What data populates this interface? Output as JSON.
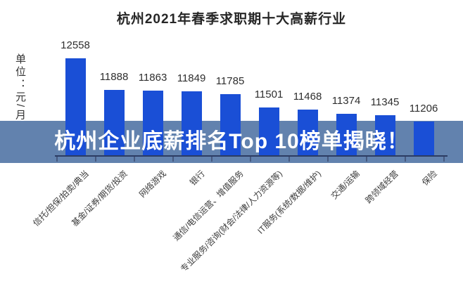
{
  "chart_title": "杭州2021年春季求职期十大高薪行业",
  "y_axis_unit": "单位：元/月",
  "banner": {
    "headline": "杭州企业底薪排名Top 10榜单揭晓！"
  },
  "chart_data": {
    "type": "bar",
    "title": "杭州2021年春季求职期十大高薪行业",
    "ylabel": "单位：元/月",
    "categories": [
      "信托/担保/拍卖/典当",
      "基金/证券/期货/投资",
      "网络游戏",
      "银行",
      "通信/电信运营、增值服务",
      "专业服务/咨询(财会/法律/人力资源等)",
      "IT服务(系统/数据/维护)",
      "交通/运输",
      "跨领域经营",
      "保险"
    ],
    "values": [
      12558,
      11888,
      11863,
      11849,
      11785,
      11501,
      11468,
      11374,
      11345,
      11206
    ],
    "value_labels_shown": true,
    "ylim": [
      10470,
      12750
    ],
    "grid": false,
    "legend": "none",
    "x_tick_label_rotation_deg": 45
  },
  "colors": {
    "bar": "#1a4fd6",
    "banner_overlay": "#6282ae",
    "banner_text": "#ffffff",
    "axis_line": "#2c3c63",
    "tick_mark": "#46597f",
    "title_text": "#262626",
    "value_label_text": "#2e2e2e",
    "category_label_text": "#3c3c3c",
    "background": "#ffffff"
  }
}
